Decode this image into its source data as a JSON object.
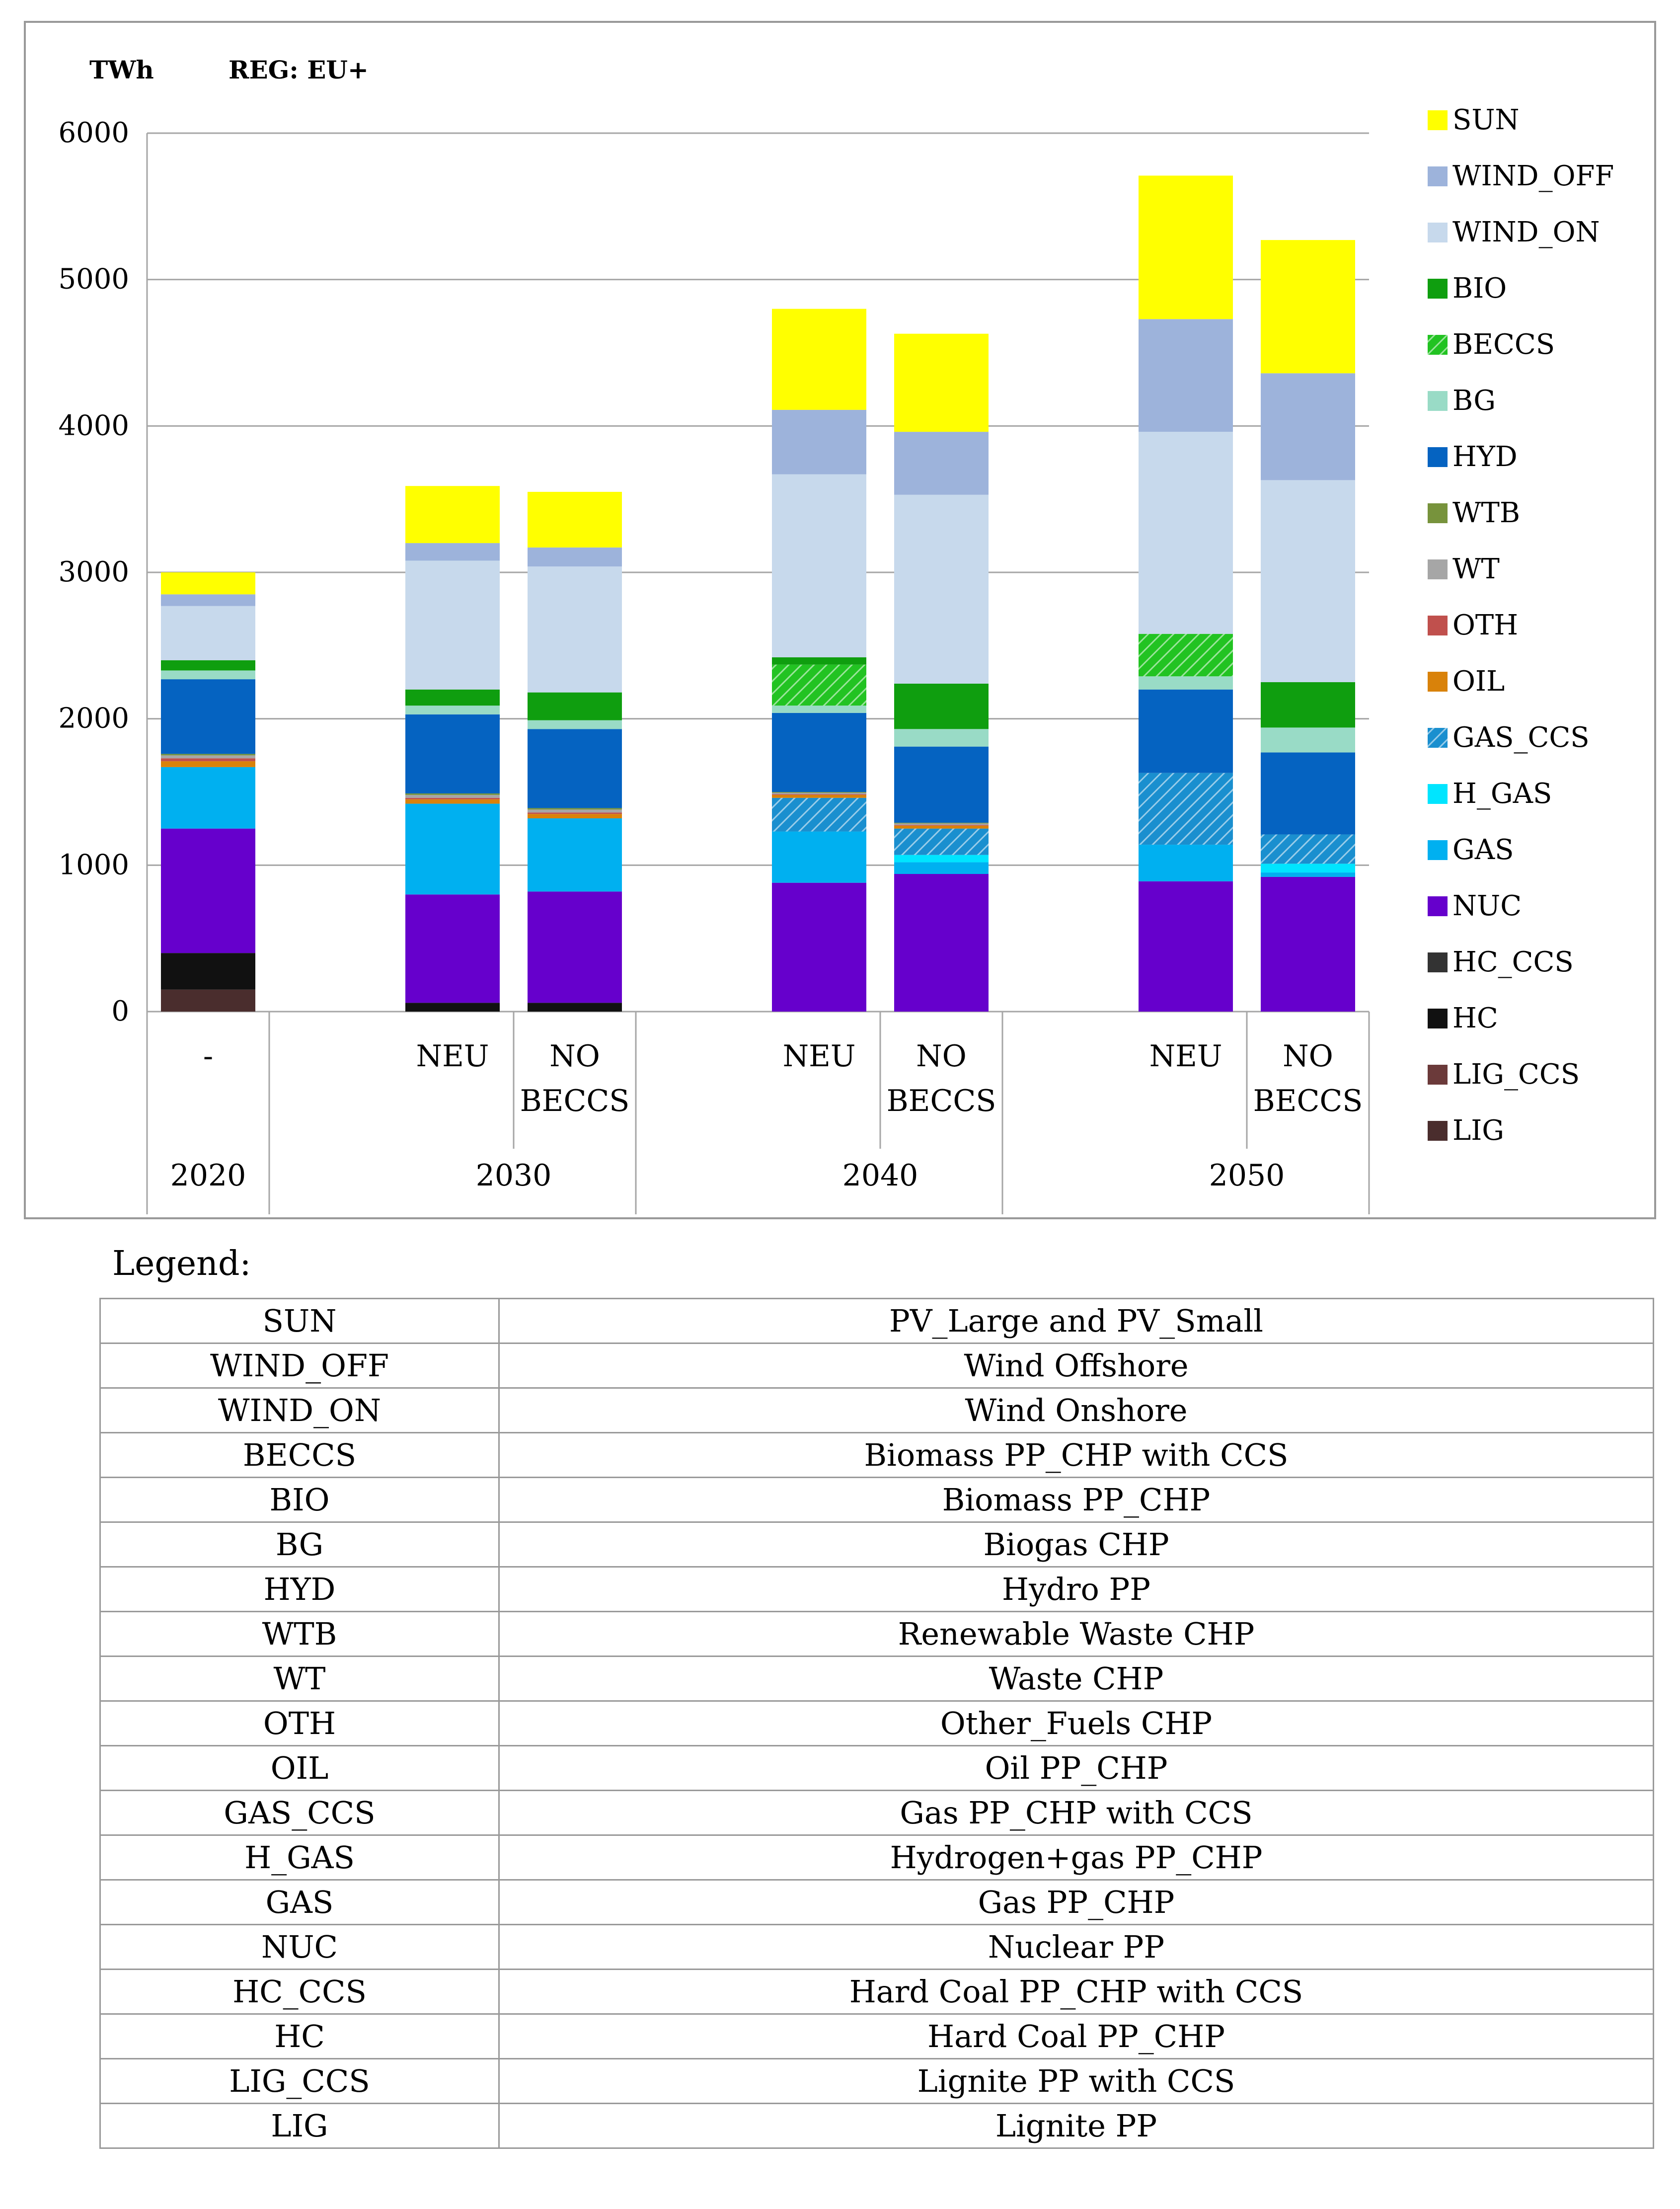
{
  "chart_data": {
    "type": "stacked_bar",
    "unit_label": "TWh",
    "region_label": "REG: EU+",
    "ylim": [
      0,
      6000
    ],
    "yticks": [
      "0",
      "1000",
      "2000",
      "3000",
      "4000",
      "5000",
      "6000"
    ],
    "grid": true,
    "legend_position": "right",
    "groups": [
      {
        "label": "2020",
        "bars": [
          "-"
        ]
      },
      {
        "label": "2030",
        "bars": [
          "NEU",
          "NO BECCS"
        ]
      },
      {
        "label": "2040",
        "bars": [
          "NEU",
          "NO BECCS"
        ]
      },
      {
        "label": "2050",
        "bars": [
          "NEU",
          "NO BECCS"
        ]
      }
    ],
    "bars": [
      {
        "group": "2020",
        "label": "-"
      },
      {
        "group": "2030",
        "label": "NEU"
      },
      {
        "group": "2030",
        "label": "NO BECCS"
      },
      {
        "group": "2040",
        "label": "NEU"
      },
      {
        "group": "2040",
        "label": "NO BECCS"
      },
      {
        "group": "2050",
        "label": "NEU"
      },
      {
        "group": "2050",
        "label": "NO BECCS"
      }
    ],
    "series": [
      {
        "name": "LIG",
        "color": "#4a2d2d",
        "values": [
          150,
          0,
          0,
          0,
          0,
          0,
          0
        ]
      },
      {
        "name": "LIG_CCS",
        "color": "#6b3a3a",
        "values": [
          0,
          0,
          0,
          0,
          0,
          0,
          0
        ]
      },
      {
        "name": "HC",
        "color": "#111111",
        "values": [
          250,
          60,
          60,
          0,
          0,
          0,
          0
        ]
      },
      {
        "name": "HC_CCS",
        "color": "#333333",
        "values": [
          0,
          0,
          0,
          0,
          0,
          0,
          0
        ]
      },
      {
        "name": "NUC",
        "color": "#6600cc",
        "values": [
          850,
          740,
          760,
          880,
          940,
          890,
          920
        ]
      },
      {
        "name": "GAS",
        "color": "#00b0f0",
        "values": [
          420,
          620,
          500,
          350,
          80,
          250,
          30
        ]
      },
      {
        "name": "H_GAS",
        "color": "#00e5ff",
        "values": [
          0,
          0,
          0,
          0,
          50,
          0,
          60
        ]
      },
      {
        "name": "GAS_CCS",
        "color": "#1a8fcf",
        "hatched": true,
        "values": [
          0,
          0,
          0,
          230,
          180,
          490,
          200
        ]
      },
      {
        "name": "OIL",
        "color": "#d9820a",
        "values": [
          40,
          30,
          30,
          20,
          20,
          0,
          0
        ]
      },
      {
        "name": "OTH",
        "color": "#c0504d",
        "values": [
          20,
          10,
          10,
          5,
          5,
          0,
          0
        ]
      },
      {
        "name": "WT",
        "color": "#a6a6a6",
        "values": [
          20,
          20,
          20,
          10,
          10,
          0,
          0
        ]
      },
      {
        "name": "WTB",
        "color": "#77933c",
        "values": [
          10,
          10,
          10,
          5,
          5,
          0,
          0
        ]
      },
      {
        "name": "HYD",
        "color": "#0563c1",
        "values": [
          510,
          540,
          540,
          540,
          520,
          570,
          560
        ]
      },
      {
        "name": "BG",
        "color": "#99dbc6",
        "values": [
          60,
          60,
          60,
          50,
          120,
          90,
          170
        ]
      },
      {
        "name": "BECCS",
        "color": "#22c322",
        "hatched": true,
        "values": [
          0,
          0,
          0,
          280,
          0,
          290,
          0
        ]
      },
      {
        "name": "BIO",
        "color": "#0f9e0f",
        "values": [
          70,
          110,
          190,
          50,
          310,
          0,
          310
        ]
      },
      {
        "name": "WIND_ON",
        "color": "#c7d9ec",
        "values": [
          370,
          880,
          860,
          1250,
          1290,
          1380,
          1380
        ]
      },
      {
        "name": "WIND_OFF",
        "color": "#9db3db",
        "values": [
          80,
          120,
          130,
          440,
          430,
          770,
          730
        ]
      },
      {
        "name": "SUN",
        "color": "#ffff00",
        "values": [
          150,
          390,
          380,
          690,
          670,
          980,
          910
        ]
      }
    ]
  },
  "legend_table": {
    "heading": "Legend:",
    "rows": [
      {
        "code": "SUN",
        "description": "PV_Large and PV_Small"
      },
      {
        "code": "WIND_OFF",
        "description": "Wind Offshore"
      },
      {
        "code": "WIND_ON",
        "description": "Wind Onshore"
      },
      {
        "code": "BECCS",
        "description": "Biomass PP_CHP with CCS"
      },
      {
        "code": "BIO",
        "description": "Biomass PP_CHP"
      },
      {
        "code": "BG",
        "description": "Biogas CHP"
      },
      {
        "code": "HYD",
        "description": "Hydro PP"
      },
      {
        "code": "WTB",
        "description": "Renewable Waste CHP"
      },
      {
        "code": "WT",
        "description": "Waste CHP"
      },
      {
        "code": "OTH",
        "description": "Other_Fuels CHP"
      },
      {
        "code": "OIL",
        "description": "Oil PP_CHP"
      },
      {
        "code": "GAS_CCS",
        "description": "Gas PP_CHP with CCS"
      },
      {
        "code": "H_GAS",
        "description": "Hydrogen+gas PP_CHP"
      },
      {
        "code": "GAS",
        "description": "Gas PP_CHP"
      },
      {
        "code": "NUC",
        "description": "Nuclear PP"
      },
      {
        "code": "HC_CCS",
        "description": "Hard Coal PP_CHP with CCS"
      },
      {
        "code": "HC",
        "description": "Hard Coal PP_CHP"
      },
      {
        "code": "LIG_CCS",
        "description": "Lignite PP with CCS"
      },
      {
        "code": "LIG",
        "description": "Lignite PP"
      }
    ]
  }
}
